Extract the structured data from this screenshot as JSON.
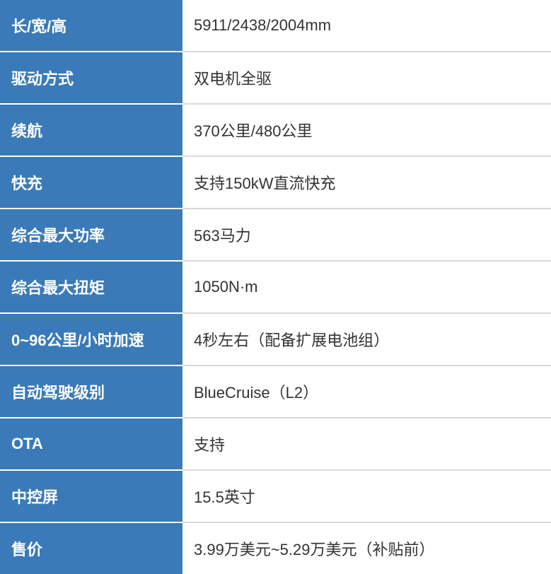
{
  "table": {
    "header_bg": "#3a7ab8",
    "header_text_color": "#ffffff",
    "value_bg": "#ffffff",
    "value_text_color": "#333333",
    "border_color": "#d9d9d9",
    "header_font_weight": 700,
    "font_size": 22,
    "label_width": 258,
    "rows": [
      {
        "label": "长/宽/高",
        "value": "5911/2438/2004mm"
      },
      {
        "label": "驱动方式",
        "value": "双电机全驱"
      },
      {
        "label": "续航",
        "value": "370公里/480公里"
      },
      {
        "label": "快充",
        "value": "支持150kW直流快充"
      },
      {
        "label": "综合最大功率",
        "value": "563马力"
      },
      {
        "label": "综合最大扭矩",
        "value": "1050N·m"
      },
      {
        "label": "0~96公里/小时加速",
        "value": "4秒左右（配备扩展电池组）"
      },
      {
        "label": "自动驾驶级别",
        "value": "BlueCruise（L2）"
      },
      {
        "label": "OTA",
        "value": "支持"
      },
      {
        "label": "中控屏",
        "value": "15.5英寸"
      },
      {
        "label": "售价",
        "value": "3.99万美元~5.29万美元（补贴前）"
      }
    ]
  }
}
